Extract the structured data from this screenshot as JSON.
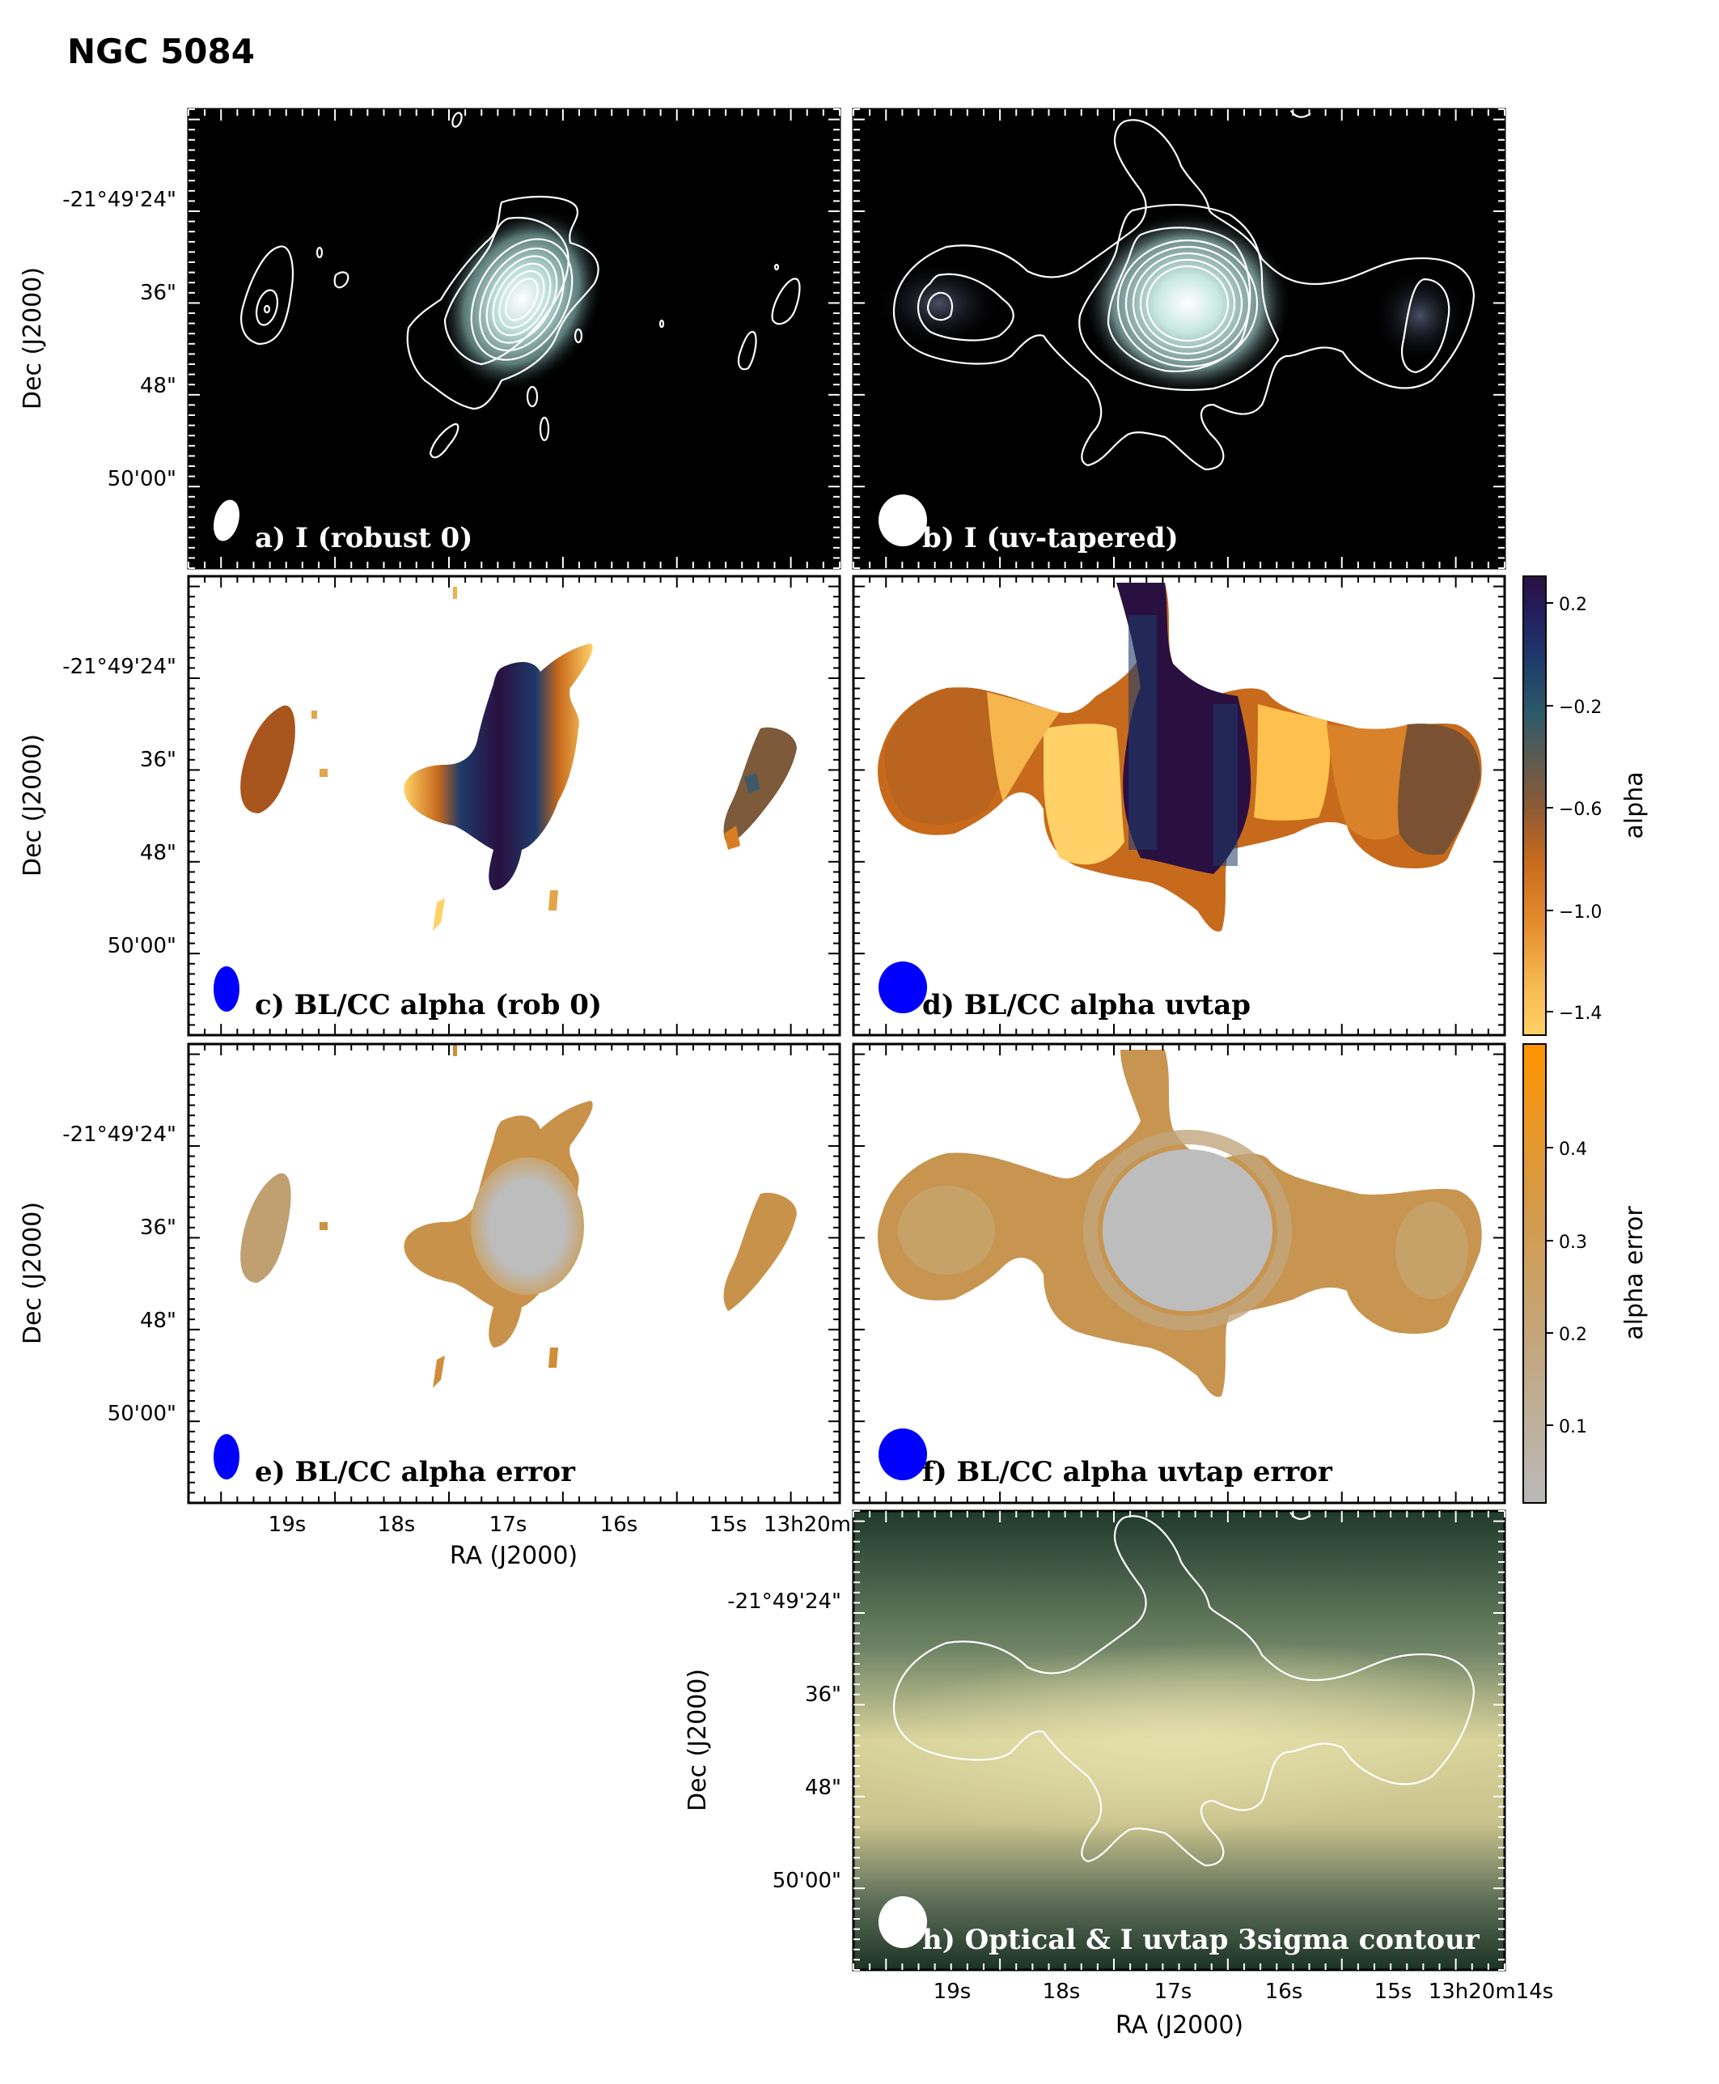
{
  "figure": {
    "title": "NGC 5084",
    "dec_axis_label": "Dec (J2000)",
    "ra_axis_label": "RA (J2000)",
    "dec_ticks": [
      "-21°49'24\"",
      "36\"",
      "48\"",
      "50'00\""
    ],
    "ra_ticks_e": [
      "19s",
      "18s",
      "17s",
      "16s",
      "15s",
      "13h20m"
    ],
    "ra_ticks_h": [
      "19s",
      "18s",
      "17s",
      "16s",
      "15s",
      "13h20m14s"
    ]
  },
  "panels": {
    "a": {
      "label": "a) I (robust 0)"
    },
    "b": {
      "label": "b) I (uv-tapered)"
    },
    "c": {
      "label": "c) BL/CC alpha (rob 0)"
    },
    "d": {
      "label": "d) BL/CC alpha uvtap"
    },
    "e": {
      "label": "e)  BL/CC alpha error"
    },
    "f": {
      "label": "f) BL/CC alpha uvtap error"
    },
    "h": {
      "label": "h) Optical & I uvtap 3sigma contour"
    }
  },
  "colorbars": {
    "alpha": {
      "label": "alpha",
      "ticks": [
        "0.2",
        "−0.2",
        "−0.6",
        "−1.0",
        "−1.4"
      ],
      "colors": [
        "#ffd166",
        "#f7b24a",
        "#e48a2c",
        "#c86a1c",
        "#9a5a2a",
        "#6e5a48",
        "#3f5a66",
        "#1f4a6e",
        "#1e2a5e",
        "#2a1240"
      ]
    },
    "alpha_error": {
      "label": "alpha error",
      "ticks": [
        "0.4",
        "0.3",
        "0.2",
        "0.1"
      ],
      "colors": [
        "#b8b8b8",
        "#bfae90",
        "#c9a06a",
        "#d49a48",
        "#e9961e",
        "#ff9400"
      ]
    }
  }
}
